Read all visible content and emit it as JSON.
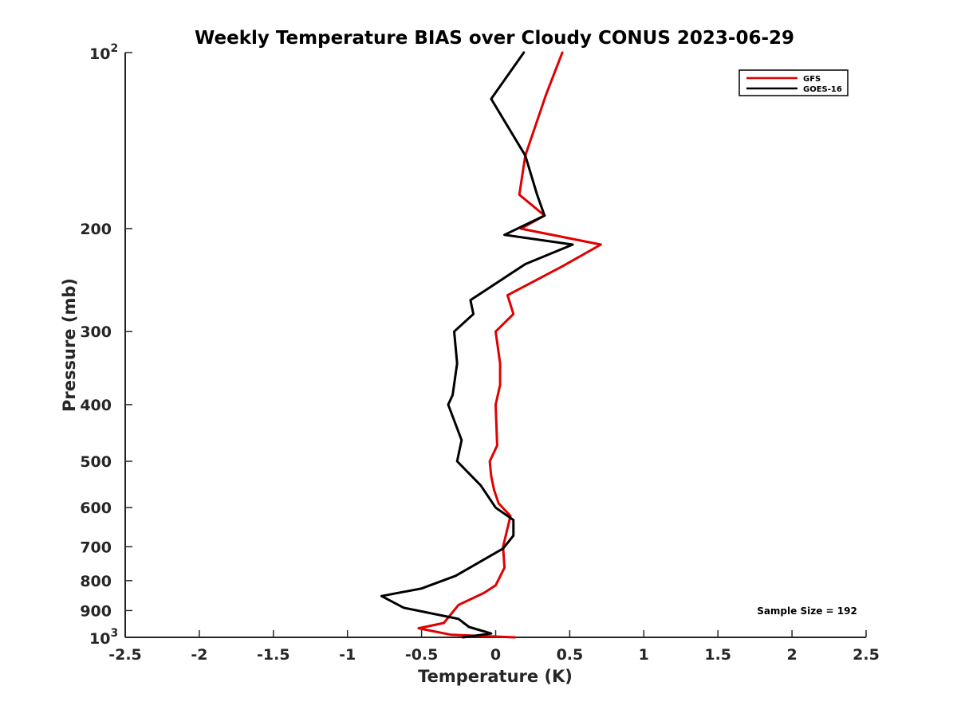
{
  "chart_data": {
    "type": "line",
    "title": "Weekly Temperature BIAS over Cloudy CONUS 2023-06-29",
    "xlabel": "Temperature (K)",
    "ylabel": "Pressure (mb)",
    "xlim": [
      -2.5,
      2.5
    ],
    "ylim": [
      1000,
      100
    ],
    "yscale": "log",
    "x_ticks": [
      -2.5,
      -2,
      -1.5,
      -1,
      -0.5,
      0,
      0.5,
      1,
      1.5,
      2,
      2.5
    ],
    "x_tick_labels": [
      "-2.5",
      "-2",
      "-1.5",
      "-1",
      "-0.5",
      "0",
      "0.5",
      "1",
      "1.5",
      "2",
      "2.5"
    ],
    "y_ticks": [
      100,
      200,
      300,
      400,
      500,
      600,
      700,
      800,
      900,
      1000
    ],
    "y_tick_labels": [
      "",
      "200",
      "300",
      "400",
      "500",
      "600",
      "700",
      "800",
      "900",
      ""
    ],
    "y_pow_labels": [
      {
        "base": "10",
        "exp": "2",
        "value": 100
      },
      {
        "base": "10",
        "exp": "3",
        "value": 1000
      }
    ],
    "legend_position": "top-right",
    "grid": false,
    "series": [
      {
        "name": "GFS",
        "color": "#e00000",
        "points": [
          [
            0.45,
            100
          ],
          [
            0.34,
            118
          ],
          [
            0.2,
            150
          ],
          [
            0.16,
            175
          ],
          [
            0.33,
            190
          ],
          [
            0.17,
            200
          ],
          [
            0.71,
            213
          ],
          [
            0.45,
            232
          ],
          [
            0.08,
            260
          ],
          [
            0.12,
            280
          ],
          [
            0.0,
            300
          ],
          [
            0.03,
            340
          ],
          [
            0.03,
            370
          ],
          [
            0.0,
            400
          ],
          [
            0.01,
            470
          ],
          [
            -0.04,
            500
          ],
          [
            -0.03,
            530
          ],
          [
            -0.01,
            560
          ],
          [
            0.02,
            590
          ],
          [
            0.1,
            620
          ],
          [
            0.05,
            700
          ],
          [
            0.06,
            760
          ],
          [
            0.0,
            815
          ],
          [
            -0.08,
            840
          ],
          [
            -0.25,
            880
          ],
          [
            -0.35,
            945
          ],
          [
            -0.52,
            965
          ],
          [
            -0.3,
            990
          ],
          [
            0.13,
            1000
          ]
        ]
      },
      {
        "name": "GOES-16",
        "color": "#000000",
        "points": [
          [
            0.19,
            100
          ],
          [
            -0.03,
            120
          ],
          [
            0.2,
            150
          ],
          [
            0.28,
            175
          ],
          [
            0.33,
            190
          ],
          [
            0.06,
            205
          ],
          [
            0.52,
            213
          ],
          [
            0.2,
            230
          ],
          [
            -0.17,
            265
          ],
          [
            -0.15,
            280
          ],
          [
            -0.28,
            300
          ],
          [
            -0.26,
            340
          ],
          [
            -0.29,
            385
          ],
          [
            -0.32,
            400
          ],
          [
            -0.23,
            460
          ],
          [
            -0.26,
            500
          ],
          [
            -0.1,
            550
          ],
          [
            0.0,
            600
          ],
          [
            0.12,
            630
          ],
          [
            0.12,
            670
          ],
          [
            0.05,
            705
          ],
          [
            -0.27,
            785
          ],
          [
            -0.5,
            825
          ],
          [
            -0.77,
            850
          ],
          [
            -0.62,
            890
          ],
          [
            -0.25,
            930
          ],
          [
            -0.18,
            960
          ],
          [
            -0.03,
            985
          ],
          [
            -0.22,
            1000
          ]
        ]
      }
    ],
    "annotation": "Sample Size = 192"
  }
}
